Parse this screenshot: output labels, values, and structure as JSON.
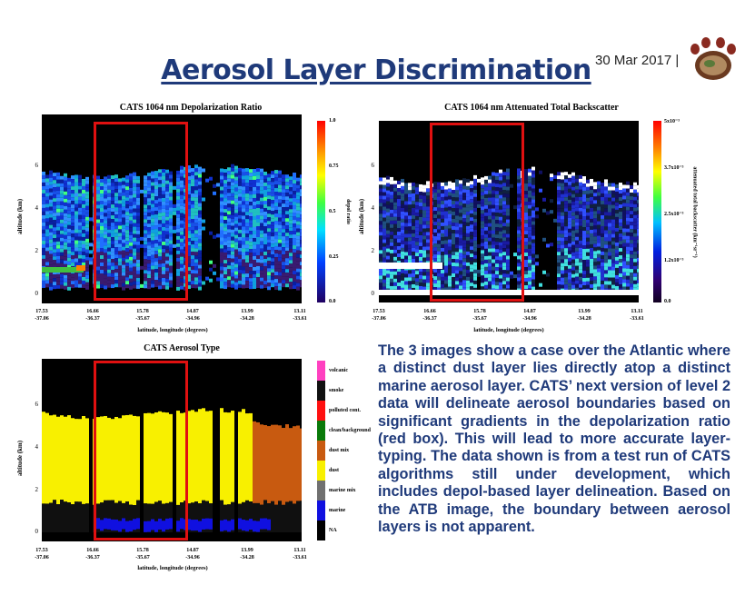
{
  "header": {
    "title": "Aerosol Layer Discrimination",
    "date": "30 Mar 2017 |"
  },
  "panels": [
    {
      "title": "CATS 1064 nm Depolarization Ratio",
      "ylabel": "altitude (km)",
      "xlabel": "latitude, longitude (degrees)",
      "yticks": [
        "6",
        "4",
        "2",
        "0"
      ],
      "xticks": [
        [
          "17.53",
          "-37.06"
        ],
        [
          "16.66",
          "-36.37"
        ],
        [
          "15.78",
          "-35.67"
        ],
        [
          "14.87",
          "-34.96"
        ],
        [
          "13.99",
          "-34.28"
        ],
        [
          "13.11",
          "-33.61"
        ]
      ],
      "colorbar_ticks": [
        "1.0",
        "0.75",
        "0.5",
        "0.25",
        "0.0"
      ],
      "colorbar_label": "depol ratio"
    },
    {
      "title": "CATS 1064 nm Attenuated Total Backscatter",
      "ylabel": "altitude (km)",
      "xlabel": "latitude, longitude (degrees)",
      "yticks": [
        "6",
        "4",
        "2",
        "0"
      ],
      "xticks": [
        [
          "17.53",
          "-37.06"
        ],
        [
          "16.66",
          "-36.37"
        ],
        [
          "15.78",
          "-35.67"
        ],
        [
          "14.87",
          "-34.96"
        ],
        [
          "13.99",
          "-34.28"
        ],
        [
          "13.11",
          "-33.61"
        ]
      ],
      "colorbar_ticks": [
        "5x10⁻³",
        "3.7x10⁻³",
        "2.5x10⁻³",
        "1.2x10⁻³",
        "0.0"
      ],
      "colorbar_label": "attenuated total backscatter (km⁻¹sr⁻¹)"
    },
    {
      "title": "CATS Aerosol Type",
      "ylabel": "altitude (km)",
      "xlabel": "latitude, longitude (degrees)",
      "yticks": [
        "6",
        "4",
        "2",
        "0"
      ],
      "xticks": [
        [
          "17.53",
          "-37.06"
        ],
        [
          "16.66",
          "-36.37"
        ],
        [
          "15.78",
          "-35.67"
        ],
        [
          "14.87",
          "-34.96"
        ],
        [
          "13.99",
          "-34.28"
        ],
        [
          "13.11",
          "-33.61"
        ]
      ],
      "legend": [
        {
          "label": "volcanic",
          "color": "#ff40c0"
        },
        {
          "label": "smoke",
          "color": "#111111"
        },
        {
          "label": "polluted cont.",
          "color": "#ff1010"
        },
        {
          "label": "clean/background",
          "color": "#0a7a0a"
        },
        {
          "label": "dust mix",
          "color": "#c85a10"
        },
        {
          "label": "dust",
          "color": "#f8f000"
        },
        {
          "label": "marine mix",
          "color": "#707070"
        },
        {
          "label": "marine",
          "color": "#1010e0"
        },
        {
          "label": "NA",
          "color": "#000000"
        }
      ]
    }
  ],
  "description": "The 3 images show a case over the Atlantic where a distinct dust layer lies directly atop a distinct marine aerosol layer. CATS’ next version of level 2 data will delineate aerosol boundaries based on significant gradients in the depolarization ratio (red box). This will lead to more accurate layer-typing. The data shown is from a test run of CATS algorithms still under development, which includes depol-based layer delineation. Based on the ATB image, the boundary between aerosol layers is not apparent.",
  "colors": {
    "title": "#1f3a7a",
    "highlight_box": "#e01010"
  }
}
